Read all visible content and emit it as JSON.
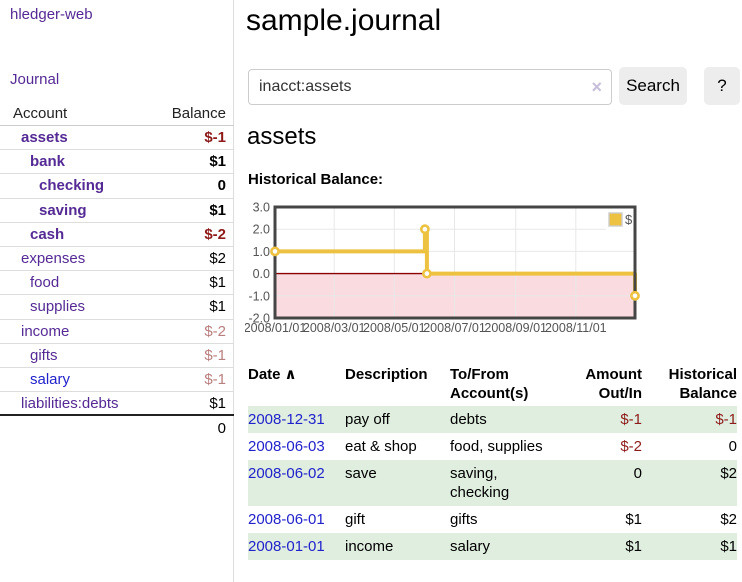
{
  "colors": {
    "accent_purple": "#542a95",
    "link_blue": "#2222cc",
    "negative_red": "#8e1b1b",
    "negative_dim": "#b97e7e",
    "row_green": "#dfeedf",
    "button_gray": "#ededed"
  },
  "sidebar": {
    "app_title": "hledger-web",
    "journal_label": "Journal",
    "accounts_table": {
      "account_header": "Account",
      "balance_header": "Balance",
      "rows": [
        {
          "name": "assets",
          "depth": 1,
          "bold": true,
          "balance": "$-1",
          "balance_style": "neg"
        },
        {
          "name": "bank",
          "depth": 2,
          "bold": true,
          "balance": "$1",
          "balance_style": "pos"
        },
        {
          "name": "checking",
          "depth": 3,
          "bold": true,
          "balance": "0",
          "balance_style": "pos"
        },
        {
          "name": "saving",
          "depth": 3,
          "bold": true,
          "balance": "$1",
          "balance_style": "pos"
        },
        {
          "name": "cash",
          "depth": 2,
          "bold": true,
          "balance": "$-2",
          "balance_style": "neg"
        },
        {
          "name": "expenses",
          "depth": 1,
          "bold": false,
          "balance": "$2",
          "balance_style": "pos"
        },
        {
          "name": "food",
          "depth": 2,
          "bold": false,
          "balance": "$1",
          "balance_style": "pos"
        },
        {
          "name": "supplies",
          "depth": 2,
          "bold": false,
          "balance": "$1",
          "balance_style": "pos"
        },
        {
          "name": "income",
          "depth": 1,
          "bold": false,
          "balance": "$-2",
          "balance_style": "neg-dim"
        },
        {
          "name": "gifts",
          "depth": 2,
          "bold": false,
          "balance": "$-1",
          "balance_style": "neg-dim"
        },
        {
          "name": "salary",
          "depth": 2,
          "bold": false,
          "link_style": "blue",
          "balance": "$-1",
          "balance_style": "neg-dim"
        },
        {
          "name": "liabilities:debts",
          "depth": 1,
          "bold": false,
          "balance": "$1",
          "balance_style": "pos",
          "last": true
        }
      ],
      "total": "0"
    }
  },
  "main": {
    "title": "sample.journal",
    "search": {
      "value": "inacct:assets",
      "clear_icon": "×",
      "button_label": "Search",
      "help_label": "?"
    },
    "account_heading": "assets",
    "chart_label": "Historical Balance:"
  },
  "chart_data": {
    "type": "line",
    "title": "Historical Balance:",
    "step": true,
    "x_start": "2008-01-01",
    "x_end": "2008-12-31",
    "x_ticks": [
      "2008/01/01",
      "2008/03/01",
      "2008/05/01",
      "2008/07/01",
      "2008/09/01",
      "2008/11/01"
    ],
    "y_ticks": [
      "3.0",
      "2.0",
      "1.0",
      "0.0",
      "-1.0",
      "-2.0"
    ],
    "ylim": [
      -2,
      3
    ],
    "series": [
      {
        "name": "$",
        "color": "#edc240",
        "points": [
          {
            "date": "2008-01-01",
            "value": 1
          },
          {
            "date": "2008-06-01",
            "value": 2
          },
          {
            "date": "2008-06-03",
            "value": 0
          },
          {
            "date": "2008-12-31",
            "value": -1
          }
        ]
      }
    ],
    "legend_position": "top-right",
    "grid": true,
    "negative_region_color": "#fadce0",
    "zero_line_color": "#8b0000",
    "border_color": "#454545",
    "grid_color": "#e8e8e8",
    "tick_label_color": "#545454"
  },
  "register": {
    "columns": [
      {
        "lines": [
          "Date"
        ],
        "sort_icon": "∧"
      },
      {
        "lines": [
          "Description"
        ]
      },
      {
        "lines": [
          "To/From",
          "Account(s)"
        ]
      },
      {
        "lines": [
          "Amount",
          "Out/In"
        ]
      },
      {
        "lines": [
          "Historical",
          "Balance"
        ]
      }
    ],
    "rows": [
      {
        "date": "2008-12-31",
        "description": "pay off",
        "accounts": "debts",
        "amount": "$-1",
        "amount_style": "neg",
        "balance": "$-1",
        "balance_style": "neg"
      },
      {
        "date": "2008-06-03",
        "description": "eat & shop",
        "accounts": "food, supplies",
        "amount": "$-2",
        "amount_style": "neg",
        "balance": "0",
        "balance_style": "pos"
      },
      {
        "date": "2008-06-02",
        "description": "save",
        "accounts": "saving, checking",
        "amount": "0",
        "amount_style": "pos",
        "balance": "$2",
        "balance_style": "pos"
      },
      {
        "date": "2008-06-01",
        "description": "gift",
        "accounts": "gifts",
        "amount": "$1",
        "amount_style": "pos",
        "balance": "$2",
        "balance_style": "pos"
      },
      {
        "date": "2008-01-01",
        "description": "income",
        "accounts": "salary",
        "amount": "$1",
        "amount_style": "pos",
        "balance": "$1",
        "balance_style": "pos"
      }
    ]
  }
}
